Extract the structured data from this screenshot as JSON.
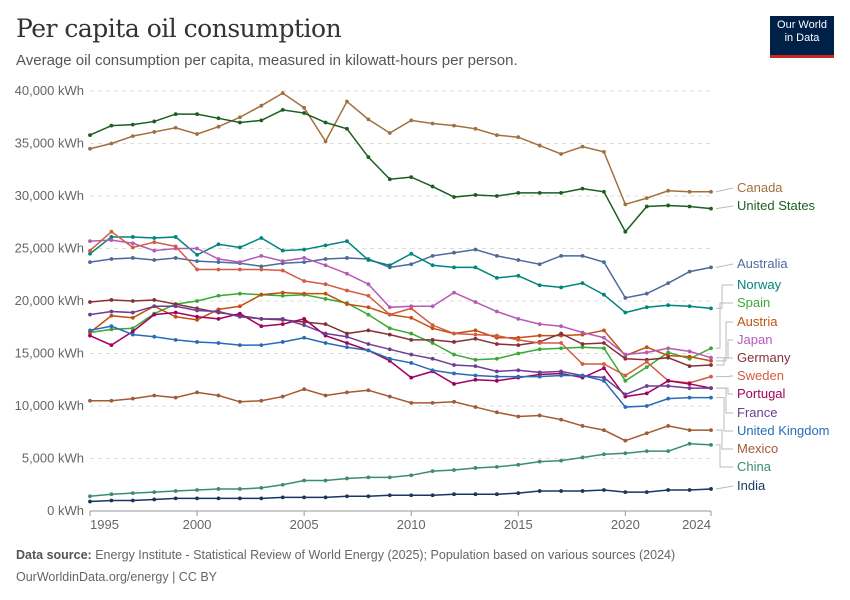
{
  "header": {
    "title": "Per capita oil consumption",
    "subtitle": "Average oil consumption per capita, measured in kilowatt-hours per person.",
    "logo_line1": "Our World",
    "logo_line2": "in Data"
  },
  "footer": {
    "source_label": "Data source:",
    "source_text": " Energy Institute - Statistical Review of World Energy (2025); Population based on various sources (2024)",
    "credit": "OurWorldinData.org/energy | CC BY"
  },
  "chart_data": {
    "type": "line",
    "title": "Per capita oil consumption",
    "subtitle": "Average oil consumption per capita, measured in kilowatt-hours per person.",
    "xlabel": "",
    "ylabel": "",
    "unit": "kWh",
    "xlim": [
      1995,
      2024
    ],
    "ylim": [
      0,
      40000
    ],
    "grid": true,
    "legend": "right",
    "x_ticks": [
      1995,
      2000,
      2005,
      2010,
      2015,
      2020,
      2024
    ],
    "y_ticks": [
      0,
      5000,
      10000,
      15000,
      20000,
      25000,
      30000,
      35000,
      40000
    ],
    "y_tick_labels": [
      "0 kWh",
      "5,000 kWh",
      "10,000 kWh",
      "15,000 kWh",
      "20,000 kWh",
      "25,000 kWh",
      "30,000 kWh",
      "35,000 kWh",
      "40,000 kWh"
    ],
    "x": [
      1995,
      1996,
      1997,
      1998,
      1999,
      2000,
      2001,
      2002,
      2003,
      2004,
      2005,
      2006,
      2007,
      2008,
      2009,
      2010,
      2011,
      2012,
      2013,
      2014,
      2015,
      2016,
      2017,
      2018,
      2019,
      2020,
      2021,
      2022,
      2023,
      2024
    ],
    "series": [
      {
        "name": "Canada",
        "color": "#a2703d",
        "values": [
          34500,
          35000,
          35700,
          36100,
          36500,
          35900,
          36600,
          37500,
          38600,
          39800,
          38400,
          35200,
          39000,
          37300,
          36000,
          37200,
          36900,
          36700,
          36400,
          35800,
          35600,
          34800,
          34000,
          34700,
          34200,
          29200,
          29800,
          30500,
          30400,
          30400
        ]
      },
      {
        "name": "United States",
        "color": "#1b5e20",
        "values": [
          35800,
          36700,
          36800,
          37100,
          37800,
          37800,
          37400,
          37000,
          37200,
          38200,
          37900,
          37000,
          36400,
          33700,
          31600,
          31800,
          30900,
          29900,
          30100,
          30000,
          30300,
          30300,
          30300,
          30700,
          30400,
          26600,
          29000,
          29100,
          29000,
          28800
        ]
      },
      {
        "name": "Australia",
        "color": "#4c6a9c",
        "values": [
          23700,
          24000,
          24100,
          23900,
          24100,
          23800,
          23700,
          23600,
          23300,
          23600,
          23700,
          24000,
          24100,
          24000,
          23200,
          23500,
          24300,
          24600,
          24900,
          24300,
          23900,
          23500,
          24300,
          24300,
          23700,
          20300,
          20700,
          21700,
          22800,
          23200
        ]
      },
      {
        "name": "Norway",
        "color": "#00847e",
        "values": [
          24500,
          26100,
          26100,
          26000,
          26100,
          24400,
          25400,
          25100,
          26000,
          24800,
          24900,
          25300,
          25700,
          23900,
          23400,
          24500,
          23400,
          23200,
          23200,
          22200,
          22400,
          21500,
          21300,
          21700,
          20600,
          18900,
          19400,
          19600,
          19500,
          19300
        ]
      },
      {
        "name": "Spain",
        "color": "#38aa34",
        "values": [
          17000,
          17300,
          17400,
          18800,
          19700,
          20000,
          20500,
          20700,
          20600,
          20500,
          20600,
          20200,
          19800,
          18700,
          17400,
          16900,
          16000,
          14900,
          14400,
          14500,
          15000,
          15400,
          15500,
          15600,
          15500,
          12400,
          13700,
          15100,
          14500,
          15500
        ]
      },
      {
        "name": "Austria",
        "color": "#c15012",
        "values": [
          17000,
          18600,
          18400,
          19500,
          18500,
          18200,
          19200,
          19500,
          20600,
          20800,
          20700,
          20700,
          19700,
          19400,
          18700,
          18400,
          17400,
          16900,
          17200,
          16500,
          16500,
          16700,
          16700,
          16800,
          17200,
          14800,
          15600,
          14800,
          14700,
          14300
        ]
      },
      {
        "name": "Japan",
        "color": "#b55bb5",
        "values": [
          25700,
          25800,
          25500,
          24800,
          25000,
          25000,
          24000,
          23700,
          24300,
          23800,
          24100,
          23400,
          22600,
          21600,
          19400,
          19500,
          19500,
          20800,
          19900,
          19000,
          18300,
          17800,
          17600,
          17000,
          16500,
          14900,
          15100,
          15500,
          15200,
          14600
        ]
      },
      {
        "name": "Germany",
        "color": "#883039",
        "values": [
          19900,
          20100,
          20000,
          20100,
          19700,
          19300,
          18900,
          18600,
          18300,
          18200,
          18000,
          17800,
          16900,
          17200,
          16800,
          16300,
          16300,
          16100,
          16400,
          15900,
          15800,
          16100,
          16900,
          15900,
          16000,
          14500,
          14400,
          14600,
          13800,
          13900
        ]
      },
      {
        "name": "Sweden",
        "color": "#d35c42",
        "values": [
          24800,
          26600,
          25100,
          25600,
          25200,
          23000,
          23000,
          23000,
          23000,
          22900,
          21900,
          21600,
          21000,
          20500,
          18700,
          19300,
          17700,
          16900,
          16800,
          16700,
          16300,
          16000,
          16000,
          14000,
          14000,
          12900,
          14200,
          12400,
          12200,
          12800
        ]
      },
      {
        "name": "Portugal",
        "color": "#a2005e",
        "values": [
          16700,
          15800,
          17100,
          18700,
          18900,
          18500,
          18300,
          18800,
          17600,
          17800,
          18300,
          16700,
          16000,
          15300,
          14300,
          12700,
          13300,
          12100,
          12500,
          12400,
          12700,
          13000,
          13100,
          12700,
          13600,
          10900,
          11200,
          12400,
          12100,
          11700
        ]
      },
      {
        "name": "France",
        "color": "#6d3e91",
        "values": [
          18700,
          19000,
          18900,
          19500,
          19500,
          19100,
          19000,
          18500,
          18300,
          18300,
          17700,
          16900,
          16600,
          15900,
          15400,
          14900,
          14500,
          13900,
          13800,
          13300,
          13400,
          13200,
          13300,
          12900,
          12700,
          11100,
          11900,
          11900,
          11700,
          11700
        ]
      },
      {
        "name": "United Kingdom",
        "color": "#286bbb",
        "values": [
          17200,
          17600,
          16800,
          16600,
          16300,
          16100,
          16000,
          15800,
          15800,
          16100,
          16500,
          16000,
          15600,
          15300,
          14500,
          14100,
          13400,
          13100,
          12900,
          12800,
          12800,
          12800,
          12900,
          12900,
          12400,
          9900,
          10000,
          10700,
          10800,
          10800
        ]
      },
      {
        "name": "Mexico",
        "color": "#a35a33",
        "values": [
          10500,
          10500,
          10700,
          11000,
          10800,
          11300,
          11000,
          10400,
          10500,
          10900,
          11600,
          11000,
          11300,
          11500,
          10900,
          10300,
          10300,
          10400,
          9900,
          9400,
          9000,
          9100,
          8700,
          8100,
          7700,
          6700,
          7400,
          8100,
          7700,
          7700
        ]
      },
      {
        "name": "China",
        "color": "#3a8e6a",
        "values": [
          1400,
          1600,
          1700,
          1800,
          1900,
          2000,
          2100,
          2100,
          2200,
          2500,
          2900,
          2900,
          3100,
          3200,
          3200,
          3400,
          3800,
          3900,
          4100,
          4200,
          4400,
          4700,
          4800,
          5100,
          5400,
          5500,
          5700,
          5700,
          6400,
          6300
        ]
      },
      {
        "name": "India",
        "color": "#18365f",
        "values": [
          900,
          1000,
          1000,
          1100,
          1200,
          1200,
          1200,
          1200,
          1200,
          1300,
          1300,
          1300,
          1400,
          1400,
          1500,
          1500,
          1500,
          1600,
          1600,
          1600,
          1700,
          1900,
          1900,
          1900,
          2000,
          1800,
          1800,
          2000,
          2000,
          2100
        ]
      }
    ],
    "legend_order": [
      "Canada",
      "United States",
      "Australia",
      "Norway",
      "Spain",
      "Austria",
      "Japan",
      "Germany",
      "Sweden",
      "Portugal",
      "France",
      "United Kingdom",
      "Mexico",
      "China",
      "India"
    ]
  }
}
